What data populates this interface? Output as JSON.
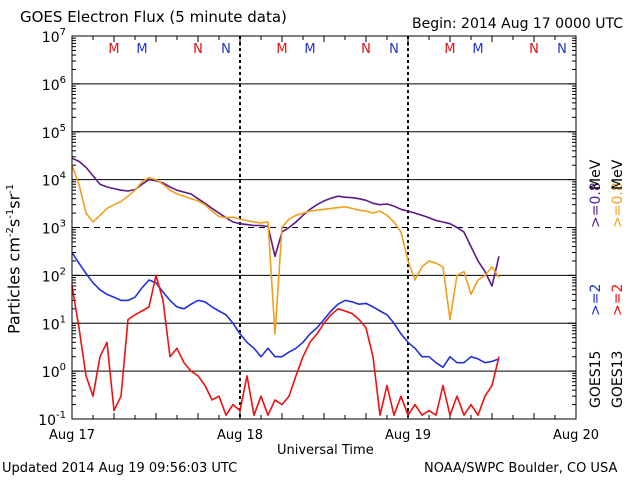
{
  "header": {
    "title": "GOES Electron Flux (5 minute data)",
    "begin": "Begin: 2014 Aug 17 0000 UTC"
  },
  "footer": {
    "updated": "Updated 2014 Aug 19 09:56:03 UTC",
    "credit": "NOAA/SWPC Boulder, CO USA"
  },
  "right_labels": {
    "goes15": "GOES15",
    "goes13": "GOES13",
    "g15_ge2": ">=2",
    "g13_ge2": ">=2",
    "g15_ge08": ">=0.8",
    "g13_ge08": ">=0.8",
    "mev": "MeV"
  },
  "colors": {
    "goes15_ge2": "#1f2fdc",
    "goes13_ge2": "#ee1111",
    "goes15_ge08": "#5b1a8c",
    "goes13_ge08": "#f0a01e",
    "marker_m": "#dd1111",
    "marker_n_red": "#dd1111",
    "marker_n_blue": "#2233cc"
  },
  "chart_data": {
    "type": "line",
    "title": "GOES Electron Flux (5 minute data)",
    "xlabel": "Universal Time",
    "ylabel": "Particles cm-2 s-1 sr-1",
    "yscale": "log",
    "ylim": [
      0.1,
      10000000
    ],
    "xlim": [
      0,
      72
    ],
    "x_unit": "hours since 2014 Aug 17 0000 UTC",
    "x_ticks": [
      {
        "x": 0,
        "label": "Aug 17"
      },
      {
        "x": 24,
        "label": "Aug 18"
      },
      {
        "x": 48,
        "label": "Aug 19"
      },
      {
        "x": 72,
        "label": "Aug 20"
      }
    ],
    "y_ticks": [
      {
        "y": 0.1,
        "base": "10",
        "exp": "-1"
      },
      {
        "y": 1,
        "base": "10",
        "exp": "0"
      },
      {
        "y": 10,
        "base": "10",
        "exp": "1"
      },
      {
        "y": 100,
        "base": "10",
        "exp": "2"
      },
      {
        "y": 1000,
        "base": "10",
        "exp": "3"
      },
      {
        "y": 10000,
        "base": "10",
        "exp": "4"
      },
      {
        "y": 100000,
        "base": "10",
        "exp": "5"
      },
      {
        "y": 1000000,
        "base": "10",
        "exp": "6"
      },
      {
        "y": 10000000,
        "base": "10",
        "exp": "7"
      }
    ],
    "grid": {
      "major_solid": [
        1,
        10,
        100,
        10000,
        100000,
        1000000
      ],
      "dashed_threshold": 1000
    },
    "day_markers": [
      {
        "day": 0,
        "labels": [
          {
            "t": "M",
            "c": "red",
            "x": 8
          },
          {
            "t": "M",
            "c": "blue",
            "x": 12
          },
          {
            "t": "N",
            "c": "red",
            "x": 20
          },
          {
            "t": "N",
            "c": "blue",
            "x": 24
          }
        ]
      },
      {
        "day": 1,
        "labels": [
          {
            "t": "M",
            "c": "red",
            "x": 32
          },
          {
            "t": "M",
            "c": "blue",
            "x": 36
          },
          {
            "t": "N",
            "c": "red",
            "x": 44
          },
          {
            "t": "N",
            "c": "blue",
            "x": 48
          }
        ]
      },
      {
        "day": 2,
        "labels": [
          {
            "t": "M",
            "c": "red",
            "x": 56
          },
          {
            "t": "M",
            "c": "blue",
            "x": 60
          },
          {
            "t": "N",
            "c": "red",
            "x": 68
          },
          {
            "t": "N",
            "c": "blue",
            "x": 72
          }
        ]
      }
    ],
    "marker_text": {
      "M": "M",
      "N": "N"
    },
    "series": [
      {
        "name": "GOES15 >=0.8 MeV",
        "color": "#5b1a8c",
        "x": [
          0,
          1,
          2,
          3,
          4,
          5,
          6,
          7,
          8,
          9,
          10,
          11,
          12,
          13,
          14,
          15,
          16,
          17,
          18,
          19,
          20,
          21,
          22,
          23,
          24,
          25,
          26,
          27,
          28,
          29,
          30,
          31,
          32,
          33,
          34,
          35,
          36,
          37,
          38,
          39,
          40,
          41,
          42,
          43,
          44,
          45,
          46,
          47,
          48,
          49,
          50,
          51,
          52,
          53,
          54,
          55,
          56,
          57,
          58,
          59,
          60,
          61
        ],
        "y": [
          28000,
          24000,
          18000,
          12000,
          8000,
          7000,
          6500,
          6000,
          5800,
          6200,
          8000,
          10000,
          9500,
          8500,
          7000,
          6000,
          5500,
          5000,
          4000,
          3200,
          2500,
          2000,
          1600,
          1300,
          1200,
          1150,
          1100,
          1100,
          1050,
          250,
          800,
          1000,
          1300,
          1800,
          2400,
          3000,
          3600,
          4100,
          4500,
          4300,
          4200,
          4000,
          3700,
          3200,
          3000,
          3100,
          2800,
          2400,
          2200,
          2000,
          1800,
          1600,
          1400,
          1300,
          1200,
          1000,
          800,
          400,
          200,
          120,
          60,
          250
        ]
      },
      {
        "name": "GOES13 >=0.8 MeV",
        "color": "#f0a01e",
        "x": [
          0,
          1,
          2,
          3,
          4,
          5,
          6,
          7,
          8,
          9,
          10,
          11,
          12,
          13,
          14,
          15,
          16,
          17,
          18,
          19,
          20,
          21,
          22,
          23,
          24,
          25,
          26,
          27,
          28,
          29,
          30,
          31,
          32,
          33,
          34,
          35,
          36,
          37,
          38,
          39,
          40,
          41,
          42,
          43,
          44,
          45,
          46,
          47,
          48,
          49,
          50,
          51,
          52,
          53,
          54,
          55,
          56,
          57,
          58,
          59,
          60,
          61
        ],
        "y": [
          20000,
          8000,
          2000,
          1300,
          1800,
          2500,
          3000,
          3500,
          4500,
          6000,
          9000,
          11000,
          10000,
          8000,
          6000,
          5000,
          4500,
          4000,
          3600,
          3000,
          2200,
          1700,
          1600,
          1650,
          1500,
          1400,
          1300,
          1250,
          1300,
          6,
          1000,
          1500,
          1800,
          2000,
          2200,
          2300,
          2400,
          2500,
          2600,
          2700,
          2500,
          2300,
          2200,
          2000,
          2200,
          1800,
          1300,
          800,
          200,
          80,
          150,
          200,
          180,
          150,
          12,
          100,
          120,
          40,
          80,
          100,
          150,
          90
        ]
      },
      {
        "name": "GOES15 >=2 MeV",
        "color": "#1f2fdc",
        "x": [
          0,
          1,
          2,
          3,
          4,
          5,
          6,
          7,
          8,
          9,
          10,
          11,
          12,
          13,
          14,
          15,
          16,
          17,
          18,
          19,
          20,
          21,
          22,
          23,
          24,
          25,
          26,
          27,
          28,
          29,
          30,
          31,
          32,
          33,
          34,
          35,
          36,
          37,
          38,
          39,
          40,
          41,
          42,
          43,
          44,
          45,
          46,
          47,
          48,
          49,
          50,
          51,
          52,
          53,
          54,
          55,
          56,
          57,
          58,
          59,
          60,
          61
        ],
        "y": [
          300,
          180,
          110,
          70,
          50,
          40,
          35,
          30,
          30,
          35,
          55,
          80,
          70,
          45,
          30,
          22,
          20,
          25,
          30,
          28,
          22,
          18,
          15,
          10,
          6,
          4,
          3,
          2,
          3,
          2,
          2,
          2.5,
          3,
          4,
          6,
          8,
          12,
          18,
          25,
          30,
          28,
          25,
          26,
          22,
          18,
          15,
          10,
          6,
          4,
          3,
          2,
          2,
          1.5,
          1.2,
          2,
          1.5,
          1.5,
          2,
          1.8,
          1.5,
          1.6,
          1.8
        ]
      },
      {
        "name": "GOES13 >=2 MeV",
        "color": "#ee1111",
        "x": [
          0,
          1,
          2,
          3,
          4,
          5,
          6,
          7,
          8,
          9,
          10,
          11,
          12,
          13,
          14,
          15,
          16,
          17,
          18,
          19,
          20,
          21,
          22,
          23,
          24,
          25,
          26,
          27,
          28,
          29,
          30,
          31,
          32,
          33,
          34,
          35,
          36,
          37,
          38,
          39,
          40,
          41,
          42,
          43,
          44,
          45,
          46,
          47,
          48,
          49,
          50,
          51,
          52,
          53,
          54,
          55,
          56,
          57,
          58,
          59,
          60,
          61
        ],
        "y": [
          60,
          8,
          0.8,
          0.3,
          2,
          4,
          0.15,
          0.3,
          12,
          15,
          18,
          22,
          100,
          30,
          2,
          3,
          1.5,
          1,
          0.8,
          0.5,
          0.25,
          0.3,
          0.12,
          0.2,
          0.15,
          0.8,
          0.12,
          0.3,
          0.12,
          0.25,
          0.2,
          0.3,
          0.8,
          2,
          4,
          6,
          10,
          15,
          20,
          18,
          16,
          12,
          8,
          2,
          0.12,
          0.5,
          0.12,
          0.3,
          0.12,
          0.2,
          0.12,
          0.15,
          0.12,
          0.5,
          0.12,
          0.3,
          0.12,
          0.2,
          0.12,
          0.3,
          0.5,
          2
        ]
      }
    ]
  }
}
